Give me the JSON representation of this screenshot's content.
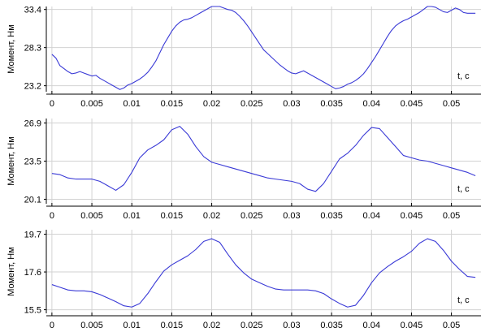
{
  "colors": {
    "series": "#3a3ad6",
    "grid": "#d2d2d2",
    "axis": "#000000",
    "background": "#ffffff"
  },
  "chart_data": [
    {
      "type": "line",
      "ylabel": "Момент, Нм",
      "xlabel": "t, c",
      "xticks": [
        "0",
        "0.005",
        "0.01",
        "0.015",
        "0.02",
        "0.025",
        "0.03",
        "0.035",
        "0.04",
        "0.045",
        "0.05"
      ],
      "yticks": [
        "33.4",
        "28.3",
        "23.2"
      ],
      "xlim": [
        -0.0007,
        0.0537
      ],
      "ylim": [
        22.4,
        33.8
      ],
      "grid": true,
      "series": [
        {
          "x": [
            0,
            0.0005,
            0.001,
            0.0015,
            0.002,
            0.0025,
            0.003,
            0.0035,
            0.004,
            0.0045,
            0.005,
            0.0055,
            0.006,
            0.0065,
            0.007,
            0.0075,
            0.008,
            0.0085,
            0.009,
            0.0095,
            0.01,
            0.0105,
            0.011,
            0.0115,
            0.012,
            0.0125,
            0.013,
            0.0135,
            0.014,
            0.0145,
            0.015,
            0.0155,
            0.016,
            0.0165,
            0.017,
            0.0175,
            0.018,
            0.0185,
            0.019,
            0.0195,
            0.02,
            0.0205,
            0.021,
            0.0215,
            0.022,
            0.0225,
            0.023,
            0.0235,
            0.024,
            0.0245,
            0.025,
            0.0255,
            0.026,
            0.0265,
            0.027,
            0.0275,
            0.028,
            0.0285,
            0.029,
            0.0295,
            0.03,
            0.0305,
            0.031,
            0.0315,
            0.032,
            0.0325,
            0.033,
            0.0335,
            0.034,
            0.0345,
            0.035,
            0.0355,
            0.036,
            0.0365,
            0.037,
            0.0375,
            0.038,
            0.0385,
            0.039,
            0.0395,
            0.04,
            0.0405,
            0.041,
            0.0415,
            0.042,
            0.0425,
            0.043,
            0.0435,
            0.044,
            0.0445,
            0.045,
            0.0455,
            0.046,
            0.0465,
            0.047,
            0.0475,
            0.048,
            0.0485,
            0.049,
            0.0495,
            0.05,
            0.0505,
            0.051,
            0.0515,
            0.052,
            0.0525,
            0.053
          ],
          "y": [
            27.4,
            26.9,
            25.9,
            25.5,
            25.1,
            24.8,
            24.9,
            25.1,
            24.9,
            24.7,
            24.5,
            24.6,
            24.2,
            23.9,
            23.6,
            23.3,
            23.0,
            22.7,
            22.9,
            23.3,
            23.5,
            23.8,
            24.1,
            24.5,
            25.0,
            25.7,
            26.5,
            27.6,
            28.7,
            29.6,
            30.5,
            31.2,
            31.7,
            32.0,
            32.1,
            32.3,
            32.6,
            32.9,
            33.2,
            33.5,
            33.8,
            33.8,
            33.8,
            33.6,
            33.4,
            33.3,
            33.0,
            32.5,
            31.9,
            31.2,
            30.4,
            29.6,
            28.8,
            28.0,
            27.5,
            27.0,
            26.5,
            26.0,
            25.6,
            25.2,
            24.9,
            24.8,
            25.0,
            25.2,
            24.9,
            24.6,
            24.3,
            24.0,
            23.7,
            23.4,
            23.1,
            22.8,
            22.9,
            23.1,
            23.4,
            23.6,
            23.9,
            24.3,
            24.8,
            25.5,
            26.3,
            27.1,
            28.0,
            28.9,
            29.8,
            30.6,
            31.2,
            31.6,
            31.9,
            32.1,
            32.4,
            32.7,
            33.0,
            33.4,
            33.8,
            33.8,
            33.7,
            33.4,
            33.1,
            33.0,
            33.3,
            33.6,
            33.4,
            33.0,
            32.9,
            32.9,
            32.9
          ]
        }
      ]
    },
    {
      "type": "line",
      "ylabel": "Момент, Нм",
      "xlabel": "t, c",
      "xticks": [
        "0",
        "0.005",
        "0.01",
        "0.015",
        "0.02",
        "0.025",
        "0.03",
        "0.035",
        "0.04",
        "0.045",
        "0.05"
      ],
      "yticks": [
        "26.9",
        "23.5",
        "20.1"
      ],
      "xlim": [
        -0.0007,
        0.0537
      ],
      "ylim": [
        19.7,
        27.3
      ],
      "grid": true,
      "series": [
        {
          "x": [
            0,
            0.001,
            0.002,
            0.003,
            0.004,
            0.005,
            0.006,
            0.007,
            0.008,
            0.009,
            0.01,
            0.011,
            0.012,
            0.013,
            0.014,
            0.015,
            0.016,
            0.017,
            0.018,
            0.019,
            0.02,
            0.021,
            0.022,
            0.023,
            0.024,
            0.025,
            0.026,
            0.027,
            0.028,
            0.029,
            0.03,
            0.031,
            0.032,
            0.033,
            0.034,
            0.035,
            0.036,
            0.037,
            0.038,
            0.039,
            0.04,
            0.041,
            0.042,
            0.043,
            0.044,
            0.045,
            0.046,
            0.047,
            0.048,
            0.049,
            0.05,
            0.051,
            0.052,
            0.053
          ],
          "y": [
            22.4,
            22.3,
            22.0,
            21.9,
            21.9,
            21.9,
            21.7,
            21.3,
            20.9,
            21.4,
            22.5,
            23.8,
            24.5,
            24.9,
            25.4,
            26.3,
            26.6,
            25.9,
            24.8,
            23.9,
            23.4,
            23.2,
            23.0,
            22.8,
            22.6,
            22.4,
            22.2,
            22.0,
            21.9,
            21.8,
            21.7,
            21.5,
            21.0,
            20.8,
            21.5,
            22.6,
            23.7,
            24.2,
            24.9,
            25.8,
            26.5,
            26.4,
            25.6,
            24.8,
            24.0,
            23.8,
            23.6,
            23.5,
            23.3,
            23.1,
            22.9,
            22.7,
            22.5,
            22.2
          ]
        }
      ]
    },
    {
      "type": "line",
      "ylabel": "Момент, Нм",
      "xlabel": "t, c",
      "xticks": [
        "0",
        "0.005",
        "0.01",
        "0.015",
        "0.02",
        "0.025",
        "0.03",
        "0.035",
        "0.04",
        "0.045",
        "0.05"
      ],
      "yticks": [
        "19.7",
        "17.6",
        "15.5"
      ],
      "xlim": [
        -0.0007,
        0.0537
      ],
      "ylim": [
        15.3,
        19.95
      ],
      "grid": true,
      "series": [
        {
          "x": [
            0,
            0.001,
            0.002,
            0.003,
            0.004,
            0.005,
            0.006,
            0.007,
            0.008,
            0.009,
            0.01,
            0.011,
            0.012,
            0.013,
            0.014,
            0.015,
            0.016,
            0.017,
            0.018,
            0.019,
            0.02,
            0.021,
            0.022,
            0.023,
            0.024,
            0.025,
            0.026,
            0.027,
            0.028,
            0.029,
            0.03,
            0.031,
            0.032,
            0.033,
            0.034,
            0.035,
            0.036,
            0.037,
            0.038,
            0.039,
            0.04,
            0.041,
            0.042,
            0.043,
            0.044,
            0.045,
            0.046,
            0.047,
            0.048,
            0.049,
            0.05,
            0.051,
            0.052,
            0.053
          ],
          "y": [
            16.9,
            16.75,
            16.6,
            16.55,
            16.55,
            16.5,
            16.35,
            16.15,
            15.95,
            15.72,
            15.65,
            15.85,
            16.4,
            17.05,
            17.65,
            18.0,
            18.25,
            18.5,
            18.85,
            19.3,
            19.45,
            19.25,
            18.6,
            18.0,
            17.55,
            17.2,
            17.0,
            16.8,
            16.65,
            16.6,
            16.6,
            16.6,
            16.6,
            16.55,
            16.4,
            16.1,
            15.85,
            15.65,
            15.75,
            16.3,
            17.0,
            17.55,
            17.9,
            18.2,
            18.45,
            18.75,
            19.2,
            19.45,
            19.3,
            18.8,
            18.2,
            17.75,
            17.35,
            17.3
          ]
        }
      ]
    }
  ]
}
